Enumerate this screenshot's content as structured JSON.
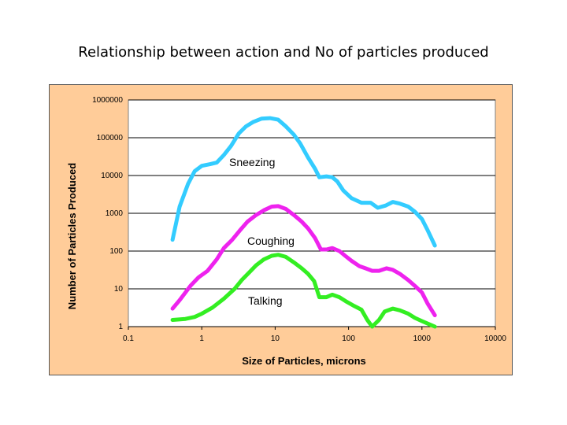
{
  "slide": {
    "title": "Relationship between action and No of particles produced"
  },
  "chart_data": {
    "type": "line",
    "title": "",
    "xlabel": "Size of Particles, microns",
    "ylabel": "Number of Particles Produced",
    "xscale": "log",
    "yscale": "log",
    "xlim": [
      0.1,
      10000
    ],
    "ylim": [
      1,
      1000000
    ],
    "grid": "horizontal",
    "plot_background": "#FFFFFF",
    "frame_background": "#FFCC99",
    "x_ticks": [
      "0.1",
      "1",
      "10",
      "100",
      "1000",
      "10000"
    ],
    "y_ticks": [
      "1",
      "10",
      "100",
      "1000",
      "10000",
      "100000",
      "1000000"
    ],
    "series": [
      {
        "name": "Sneezing",
        "label": "Sneezing",
        "color": "#33CCFF",
        "points": [
          [
            0.4,
            200
          ],
          [
            0.5,
            1500
          ],
          [
            0.65,
            6000
          ],
          [
            0.8,
            13000
          ],
          [
            1.0,
            18000
          ],
          [
            1.3,
            20000
          ],
          [
            1.6,
            22000
          ],
          [
            2.0,
            35000
          ],
          [
            2.5,
            60000
          ],
          [
            3.2,
            130000
          ],
          [
            4.0,
            200000
          ],
          [
            5.0,
            260000
          ],
          [
            6.5,
            320000
          ],
          [
            8.5,
            330000
          ],
          [
            11,
            300000
          ],
          [
            14,
            200000
          ],
          [
            18,
            120000
          ],
          [
            22,
            70000
          ],
          [
            28,
            30000
          ],
          [
            35,
            15000
          ],
          [
            40,
            9000
          ],
          [
            50,
            9500
          ],
          [
            60,
            9000
          ],
          [
            70,
            7000
          ],
          [
            85,
            4000
          ],
          [
            110,
            2500
          ],
          [
            150,
            1900
          ],
          [
            200,
            1900
          ],
          [
            250,
            1400
          ],
          [
            320,
            1600
          ],
          [
            400,
            2000
          ],
          [
            500,
            1800
          ],
          [
            650,
            1500
          ],
          [
            800,
            1100
          ],
          [
            1000,
            700
          ],
          [
            1200,
            350
          ],
          [
            1500,
            140
          ]
        ]
      },
      {
        "name": "Coughing",
        "label": "Coughing",
        "color": "#EE22EE",
        "points": [
          [
            0.4,
            3
          ],
          [
            0.5,
            5
          ],
          [
            0.7,
            12
          ],
          [
            0.9,
            20
          ],
          [
            1.2,
            30
          ],
          [
            1.6,
            60
          ],
          [
            2.0,
            120
          ],
          [
            2.6,
            200
          ],
          [
            3.3,
            350
          ],
          [
            4.2,
            600
          ],
          [
            5.5,
            900
          ],
          [
            7.0,
            1200
          ],
          [
            9.0,
            1500
          ],
          [
            11,
            1550
          ],
          [
            14,
            1300
          ],
          [
            18,
            900
          ],
          [
            23,
            600
          ],
          [
            28,
            400
          ],
          [
            35,
            220
          ],
          [
            42,
            110
          ],
          [
            50,
            110
          ],
          [
            60,
            120
          ],
          [
            75,
            100
          ],
          [
            90,
            75
          ],
          [
            110,
            55
          ],
          [
            140,
            40
          ],
          [
            170,
            35
          ],
          [
            210,
            30
          ],
          [
            260,
            30
          ],
          [
            330,
            35
          ],
          [
            400,
            32
          ],
          [
            500,
            25
          ],
          [
            650,
            17
          ],
          [
            800,
            12
          ],
          [
            1000,
            8
          ],
          [
            1200,
            4
          ],
          [
            1500,
            2
          ]
        ]
      },
      {
        "name": "Talking",
        "label": "Talking",
        "color": "#33EE22",
        "points": [
          [
            0.4,
            1.5
          ],
          [
            0.6,
            1.6
          ],
          [
            0.8,
            1.8
          ],
          [
            1.0,
            2.2
          ],
          [
            1.4,
            3.2
          ],
          [
            2.0,
            5.5
          ],
          [
            2.8,
            10
          ],
          [
            3.5,
            17
          ],
          [
            4.5,
            28
          ],
          [
            5.5,
            42
          ],
          [
            7.0,
            60
          ],
          [
            9.0,
            75
          ],
          [
            11,
            80
          ],
          [
            14,
            70
          ],
          [
            18,
            50
          ],
          [
            23,
            35
          ],
          [
            28,
            25
          ],
          [
            34,
            16
          ],
          [
            40,
            6
          ],
          [
            50,
            6
          ],
          [
            60,
            7
          ],
          [
            75,
            6
          ],
          [
            95,
            4.5
          ],
          [
            120,
            3.5
          ],
          [
            150,
            2.8
          ],
          [
            180,
            1.5
          ],
          [
            210,
            1.0
          ],
          [
            260,
            1.5
          ],
          [
            310,
            2.5
          ],
          [
            400,
            3.0
          ],
          [
            500,
            2.7
          ],
          [
            650,
            2.2
          ],
          [
            800,
            1.7
          ],
          [
            1000,
            1.4
          ],
          [
            1200,
            1.2
          ],
          [
            1500,
            1.0
          ]
        ]
      }
    ]
  }
}
